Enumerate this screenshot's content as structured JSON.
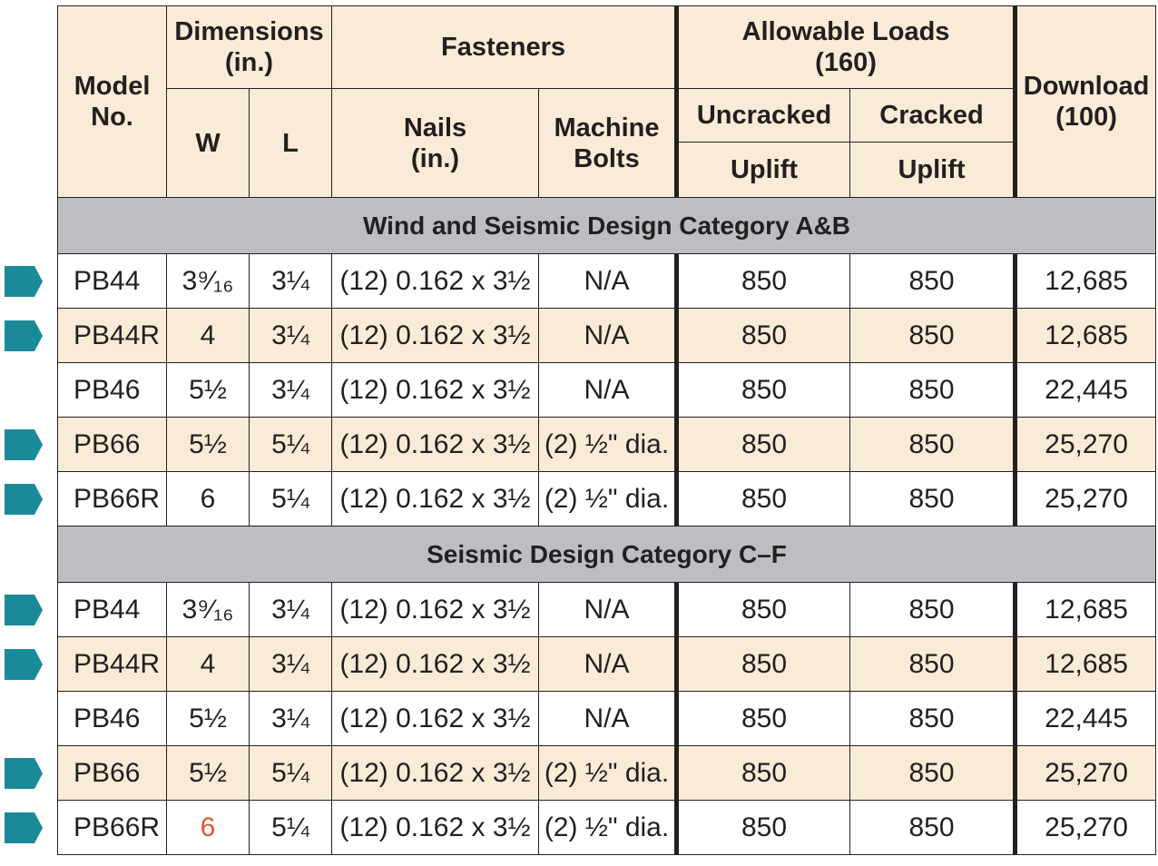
{
  "header": {
    "model": "Model\nNo.",
    "dimensions": "Dimensions\n(in.)",
    "w": "W",
    "l": "L",
    "fasteners": "Fasteners",
    "nails": "Nails\n(in.)",
    "machine_bolts": "Machine\nBolts",
    "allowable_loads": "Allowable Loads\n(160)",
    "uncracked": "Uncracked",
    "cracked": "Cracked",
    "uplift1": "Uplift",
    "uplift2": "Uplift",
    "download": "Download\n(100)"
  },
  "sections": [
    {
      "title": "Wind and Seismic Design Category A&B",
      "rows": [
        {
          "model": "PB44",
          "w": "3⁹⁄₁₆",
          "l": "3¼",
          "nails": "(12) 0.162 x 3½",
          "bolts": "N/A",
          "uncracked": "850",
          "cracked": "850",
          "download": "12,685",
          "marker": true
        },
        {
          "model": "PB44R",
          "w": "4",
          "l": "3¼",
          "nails": "(12) 0.162 x 3½",
          "bolts": "N/A",
          "uncracked": "850",
          "cracked": "850",
          "download": "12,685",
          "marker": true
        },
        {
          "model": "PB46",
          "w": "5½",
          "l": "3¼",
          "nails": "(12) 0.162 x 3½",
          "bolts": "N/A",
          "uncracked": "850",
          "cracked": "850",
          "download": "22,445",
          "marker": false
        },
        {
          "model": "PB66",
          "w": "5½",
          "l": "5¼",
          "nails": "(12) 0.162 x 3½",
          "bolts": "(2) ½\" dia.",
          "uncracked": "850",
          "cracked": "850",
          "download": "25,270",
          "marker": true
        },
        {
          "model": "PB66R",
          "w": "6",
          "l": "5¼",
          "nails": "(12) 0.162 x 3½",
          "bolts": "(2) ½\" dia.",
          "uncracked": "850",
          "cracked": "850",
          "download": "25,270",
          "marker": true
        }
      ]
    },
    {
      "title": "Seismic Design Category C–F",
      "rows": [
        {
          "model": "PB44",
          "w": "3⁹⁄₁₆",
          "l": "3¼",
          "nails": "(12) 0.162 x 3½",
          "bolts": "N/A",
          "uncracked": "850",
          "cracked": "850",
          "download": "12,685",
          "marker": true
        },
        {
          "model": "PB44R",
          "w": "4",
          "l": "3¼",
          "nails": "(12) 0.162 x 3½",
          "bolts": "N/A",
          "uncracked": "850",
          "cracked": "850",
          "download": "12,685",
          "marker": true
        },
        {
          "model": "PB46",
          "w": "5½",
          "l": "3¼",
          "nails": "(12) 0.162 x 3½",
          "bolts": "N/A",
          "uncracked": "850",
          "cracked": "850",
          "download": "22,445",
          "marker": false
        },
        {
          "model": "PB66",
          "w": "5½",
          "l": "5¼",
          "nails": "(12) 0.162 x 3½",
          "bolts": "(2) ½\" dia.",
          "uncracked": "850",
          "cracked": "850",
          "download": "25,270",
          "marker": true
        },
        {
          "model": "PB66R",
          "w": "6",
          "l": "5¼",
          "nails": "(12) 0.162 x 3½",
          "bolts": "(2) ½\" dia.",
          "uncracked": "850",
          "cracked": "850",
          "download": "25,270",
          "marker": true,
          "w_highlight": true
        }
      ]
    }
  ],
  "colors": {
    "header_bg": "#faebd7",
    "alt_row_bg": "#faebd7",
    "category_bg": "#bdbec1",
    "marker": "#1a8a99",
    "highlight_text": "#d45d32"
  },
  "icons": {
    "row_marker": "teal-pentagon-arrow-icon"
  }
}
